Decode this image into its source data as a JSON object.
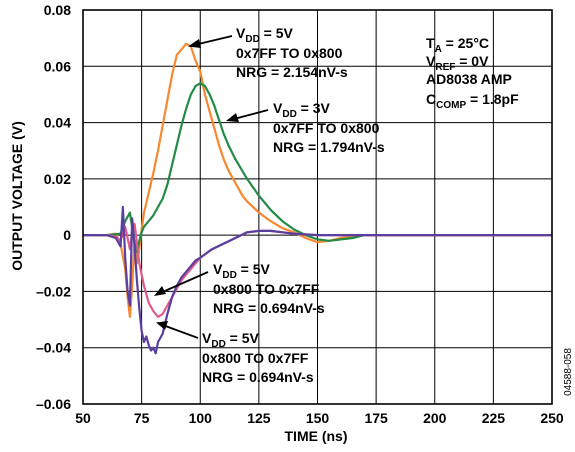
{
  "chart_data": {
    "type": "line",
    "xlabel": "TIME (ns)",
    "ylabel": "OUTPUT VOLTAGE (V)",
    "xlim": [
      50,
      250
    ],
    "ylim": [
      -0.06,
      0.08
    ],
    "x_ticks": [
      "50",
      "75",
      "100",
      "125",
      "150",
      "175",
      "200",
      "225",
      "250"
    ],
    "y_ticks": [
      "–0.06",
      "–0.04",
      "–0.02",
      "0",
      "0.02",
      "0.04",
      "0.06",
      "0.08"
    ],
    "grid": true,
    "figure_code": "04588-058",
    "conditions": {
      "ta": {
        "main": "T",
        "sub": "A",
        "rest": " = 25°C"
      },
      "vref": {
        "main": "V",
        "sub": "REF",
        "rest": " = 0V"
      },
      "amp": "AD8038 AMP",
      "ccomp": {
        "main": "C",
        "sub": "COMP",
        "rest": " = 1.8pF"
      }
    },
    "annotations": [
      {
        "vdd_main": "V",
        "vdd_sub": "DD",
        "vdd_rest": " = 5V",
        "code": "0x7FF TO 0x800",
        "nrg": "NRG = 2.154nV-s"
      },
      {
        "vdd_main": "V",
        "vdd_sub": "DD",
        "vdd_rest": " = 3V",
        "code": "0x7FF TO 0x800",
        "nrg": "NRG = 1.794nV-s"
      },
      {
        "vdd_main": "V",
        "vdd_sub": "DD",
        "vdd_rest": " = 5V",
        "code": "0x800 TO 0x7FF",
        "nrg": "NRG = 0.694nV-s"
      },
      {
        "vdd_main": "V",
        "vdd_sub": "DD",
        "vdd_rest": " = 5V",
        "code": "0x800 TO 0x7FF",
        "nrg": "NRG = 0.694nV-s"
      }
    ],
    "series": [
      {
        "color": "#f7882f",
        "x": [
          50,
          60,
          64,
          66,
          68,
          69,
          70,
          71,
          72,
          73,
          74,
          75,
          76,
          78,
          80,
          82,
          84,
          86,
          88,
          90,
          92,
          94,
          96,
          98,
          100,
          102,
          104,
          106,
          108,
          110,
          112,
          114,
          116,
          118,
          120,
          125,
          130,
          135,
          140,
          145,
          150,
          155,
          160,
          170,
          180,
          200,
          225,
          250
        ],
        "y": [
          0,
          0,
          0.0005,
          -0.003,
          -0.012,
          -0.022,
          -0.029,
          -0.018,
          -0.002,
          -0.01,
          -0.005,
          0.002,
          0.008,
          0.015,
          0.022,
          0.03,
          0.039,
          0.048,
          0.057,
          0.064,
          0.066,
          0.068,
          0.067,
          0.062,
          0.058,
          0.05,
          0.044,
          0.038,
          0.032,
          0.027,
          0.023,
          0.02,
          0.017,
          0.014,
          0.012,
          0.008,
          0.005,
          0.0025,
          0.001,
          -0.001,
          -0.0025,
          -0.002,
          -0.001,
          0,
          0,
          0,
          0,
          0
        ]
      },
      {
        "color": "#238b45",
        "x": [
          50,
          60,
          66,
          68,
          70,
          72,
          73,
          74,
          75,
          76,
          78,
          80,
          82,
          84,
          86,
          88,
          90,
          92,
          94,
          96,
          98,
          100,
          102,
          104,
          106,
          108,
          110,
          112,
          115,
          120,
          125,
          130,
          135,
          140,
          145,
          150,
          155,
          160,
          165,
          170,
          180,
          200,
          225,
          250
        ],
        "y": [
          0,
          0,
          0.0005,
          0.005,
          0.008,
          -0.003,
          -0.006,
          -0.002,
          0.001,
          0.003,
          0.005,
          0.007,
          0.01,
          0.013,
          0.018,
          0.025,
          0.032,
          0.039,
          0.045,
          0.05,
          0.053,
          0.054,
          0.053,
          0.05,
          0.046,
          0.041,
          0.036,
          0.032,
          0.027,
          0.02,
          0.014,
          0.009,
          0.005,
          0.002,
          0,
          -0.0015,
          -0.002,
          -0.0015,
          -0.001,
          0,
          0,
          0,
          0,
          0
        ]
      },
      {
        "color": "#e05a8a",
        "x": [
          50,
          60,
          64,
          66,
          68,
          70,
          71,
          72,
          74,
          76,
          78,
          80,
          82,
          84,
          86,
          88,
          90,
          92,
          94,
          96,
          98,
          100,
          105,
          110,
          115,
          120,
          125,
          130,
          135,
          140,
          150,
          160,
          175,
          200,
          225,
          250
        ],
        "y": [
          0,
          0,
          -0.0005,
          -0.002,
          0.003,
          -0.005,
          0.001,
          0.004,
          -0.01,
          -0.018,
          -0.024,
          -0.027,
          -0.029,
          -0.028,
          -0.025,
          -0.022,
          -0.019,
          -0.016,
          -0.014,
          -0.012,
          -0.01,
          -0.008,
          -0.005,
          -0.003,
          -0.001,
          0.001,
          0.0015,
          0.0015,
          0.001,
          0.0005,
          0,
          0,
          0,
          0,
          0,
          0
        ]
      },
      {
        "color": "#5b3fa0",
        "x": [
          50,
          60,
          64,
          66,
          67,
          68,
          69,
          70,
          71,
          72,
          73,
          74,
          75,
          76,
          77,
          78,
          79,
          80,
          81,
          82,
          84,
          86,
          88,
          90,
          92,
          94,
          96,
          98,
          100,
          105,
          110,
          115,
          120,
          125,
          130,
          140,
          150,
          175,
          200,
          225,
          250
        ],
        "y": [
          0,
          0,
          -0.001,
          -0.004,
          0.01,
          -0.008,
          -0.02,
          -0.025,
          0.006,
          -0.004,
          -0.016,
          -0.026,
          -0.034,
          -0.038,
          -0.036,
          -0.039,
          -0.041,
          -0.04,
          -0.042,
          -0.038,
          -0.035,
          -0.028,
          -0.022,
          -0.018,
          -0.015,
          -0.013,
          -0.011,
          -0.009,
          -0.008,
          -0.005,
          -0.003,
          -0.001,
          0.001,
          0.0015,
          0.0015,
          0.0005,
          0,
          0,
          0,
          0,
          0
        ]
      }
    ]
  }
}
